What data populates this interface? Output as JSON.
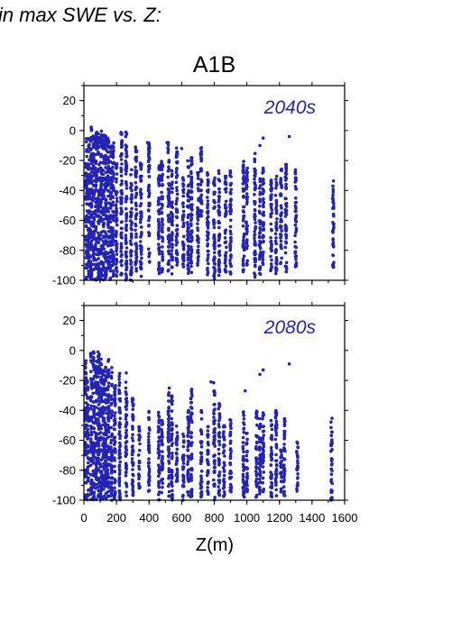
{
  "heading": "in max SWE vs. Z:",
  "title": "A1B",
  "xlabel": "Z(m)",
  "colors": {
    "points": "#2323b4",
    "frame": "#000000"
  },
  "chart_data": [
    {
      "type": "scatter",
      "panel_label": "2040s",
      "xlabel": "Z(m)",
      "ylabel": "",
      "xlim": [
        0,
        1600
      ],
      "ylim": [
        -100,
        30
      ],
      "x_ticks": [
        0,
        200,
        400,
        600,
        800,
        1000,
        1200,
        1400,
        1600
      ],
      "y_ticks": [
        20,
        0,
        -20,
        -40,
        -60,
        -80,
        -100
      ],
      "x_tick_labels_shown": false,
      "grid": false,
      "description_of_point_columns": "",
      "columns": [
        {
          "x": 15,
          "y": [
            -100,
            -5
          ]
        },
        {
          "x": 30,
          "y": [
            -100,
            -3
          ]
        },
        {
          "x": 45,
          "y": [
            -100,
            3
          ]
        },
        {
          "x": 60,
          "y": [
            -100,
            0
          ]
        },
        {
          "x": 75,
          "y": [
            -100,
            0
          ]
        },
        {
          "x": 90,
          "y": [
            -100,
            0
          ]
        },
        {
          "x": 105,
          "y": [
            -100,
            0
          ]
        },
        {
          "x": 120,
          "y": [
            -100,
            0
          ]
        },
        {
          "x": 135,
          "y": [
            -100,
            0
          ]
        },
        {
          "x": 150,
          "y": [
            -100,
            -5
          ]
        },
        {
          "x": 165,
          "y": [
            -100,
            -10
          ]
        },
        {
          "x": 180,
          "y": [
            -100,
            -5
          ]
        },
        {
          "x": 200,
          "y": [
            -98,
            -20
          ]
        },
        {
          "x": 230,
          "y": [
            -98,
            0
          ]
        },
        {
          "x": 260,
          "y": [
            -100,
            0
          ]
        },
        {
          "x": 290,
          "y": [
            -100,
            -25
          ]
        },
        {
          "x": 320,
          "y": [
            -95,
            -10
          ]
        },
        {
          "x": 350,
          "y": [
            -98,
            -20
          ]
        },
        {
          "x": 400,
          "y": [
            -90,
            -8
          ]
        },
        {
          "x": 460,
          "y": [
            -98,
            -22
          ]
        },
        {
          "x": 480,
          "y": [
            -95,
            -20
          ]
        },
        {
          "x": 520,
          "y": [
            -95,
            -8
          ]
        },
        {
          "x": 540,
          "y": [
            -98,
            -25
          ]
        },
        {
          "x": 570,
          "y": [
            -90,
            -10
          ]
        },
        {
          "x": 610,
          "y": [
            -95,
            -30
          ]
        },
        {
          "x": 640,
          "y": [
            -98,
            -20
          ]
        },
        {
          "x": 660,
          "y": [
            -95,
            -15
          ]
        },
        {
          "x": 700,
          "y": [
            -90,
            -28
          ]
        },
        {
          "x": 720,
          "y": [
            -60,
            -10
          ]
        },
        {
          "x": 760,
          "y": [
            -98,
            -28
          ]
        },
        {
          "x": 800,
          "y": [
            -100,
            -30
          ]
        },
        {
          "x": 830,
          "y": [
            -98,
            -25
          ]
        },
        {
          "x": 870,
          "y": [
            -95,
            -30
          ]
        },
        {
          "x": 900,
          "y": [
            -96,
            -25
          ]
        },
        {
          "x": 980,
          "y": [
            -95,
            -20
          ]
        },
        {
          "x": 1000,
          "y": [
            -90,
            -25
          ]
        },
        {
          "x": 1050,
          "y": [
            -98,
            -15
          ]
        },
        {
          "x": 1080,
          "y": [
            -98,
            -30
          ]
        },
        {
          "x": 1100,
          "y": [
            -90,
            -25
          ]
        },
        {
          "x": 1150,
          "y": [
            -95,
            -30
          ]
        },
        {
          "x": 1180,
          "y": [
            -96,
            -28
          ]
        },
        {
          "x": 1210,
          "y": [
            -90,
            -25
          ]
        },
        {
          "x": 1240,
          "y": [
            -95,
            -20
          ]
        },
        {
          "x": 1300,
          "y": [
            -92,
            -25
          ]
        },
        {
          "x": 1530,
          "y": [
            -92,
            -33
          ]
        }
      ],
      "outliers": [
        {
          "x": 390,
          "y": -8
        },
        {
          "x": 510,
          "y": -8
        },
        {
          "x": 1080,
          "y": -10
        },
        {
          "x": 1100,
          "y": -5
        },
        {
          "x": 1260,
          "y": -4
        },
        {
          "x": 600,
          "y": -12
        }
      ]
    },
    {
      "type": "scatter",
      "panel_label": "2080s",
      "xlabel": "Z(m)",
      "ylabel": "",
      "xlim": [
        0,
        1600
      ],
      "ylim": [
        -100,
        30
      ],
      "x_ticks": [
        0,
        200,
        400,
        600,
        800,
        1000,
        1200,
        1400,
        1600
      ],
      "x_tick_labels": [
        "0",
        "200",
        "400",
        "600",
        "800",
        "1000",
        "1200",
        "1400",
        "1600"
      ],
      "y_ticks": [
        20,
        0,
        -20,
        -40,
        -60,
        -80,
        -100
      ],
      "grid": false,
      "columns": [
        {
          "x": 10,
          "y": [
            -100,
            -5
          ]
        },
        {
          "x": 25,
          "y": [
            -100,
            -20
          ]
        },
        {
          "x": 45,
          "y": [
            -100,
            0
          ]
        },
        {
          "x": 60,
          "y": [
            -100,
            0
          ]
        },
        {
          "x": 75,
          "y": [
            -100,
            -5
          ]
        },
        {
          "x": 90,
          "y": [
            -100,
            0
          ]
        },
        {
          "x": 105,
          "y": [
            -100,
            -5
          ]
        },
        {
          "x": 120,
          "y": [
            -100,
            -8
          ]
        },
        {
          "x": 135,
          "y": [
            -100,
            -10
          ]
        },
        {
          "x": 150,
          "y": [
            -100,
            -5
          ]
        },
        {
          "x": 170,
          "y": [
            -100,
            -10
          ]
        },
        {
          "x": 190,
          "y": [
            -100,
            -20
          ]
        },
        {
          "x": 220,
          "y": [
            -100,
            -15
          ]
        },
        {
          "x": 260,
          "y": [
            -100,
            -20
          ]
        },
        {
          "x": 300,
          "y": [
            -98,
            -30
          ]
        },
        {
          "x": 340,
          "y": [
            -95,
            -50
          ]
        },
        {
          "x": 400,
          "y": [
            -95,
            -40
          ]
        },
        {
          "x": 460,
          "y": [
            -100,
            -40
          ]
        },
        {
          "x": 480,
          "y": [
            -98,
            -45
          ]
        },
        {
          "x": 520,
          "y": [
            -98,
            -25
          ]
        },
        {
          "x": 540,
          "y": [
            -100,
            -30
          ]
        },
        {
          "x": 570,
          "y": [
            -95,
            -50
          ]
        },
        {
          "x": 610,
          "y": [
            -100,
            -55
          ]
        },
        {
          "x": 640,
          "y": [
            -100,
            -40
          ]
        },
        {
          "x": 660,
          "y": [
            -100,
            -25
          ]
        },
        {
          "x": 720,
          "y": [
            -98,
            -40
          ]
        },
        {
          "x": 760,
          "y": [
            -98,
            -50
          ]
        },
        {
          "x": 800,
          "y": [
            -100,
            -20
          ]
        },
        {
          "x": 830,
          "y": [
            -98,
            -35
          ]
        },
        {
          "x": 860,
          "y": [
            -98,
            -50
          ]
        },
        {
          "x": 900,
          "y": [
            -98,
            -45
          ]
        },
        {
          "x": 980,
          "y": [
            -98,
            -40
          ]
        },
        {
          "x": 1000,
          "y": [
            -95,
            -55
          ]
        },
        {
          "x": 1060,
          "y": [
            -98,
            -40
          ]
        },
        {
          "x": 1080,
          "y": [
            -100,
            -45
          ]
        },
        {
          "x": 1100,
          "y": [
            -95,
            -40
          ]
        },
        {
          "x": 1150,
          "y": [
            -98,
            -45
          ]
        },
        {
          "x": 1180,
          "y": [
            -98,
            -40
          ]
        },
        {
          "x": 1210,
          "y": [
            -95,
            -60
          ]
        },
        {
          "x": 1230,
          "y": [
            -98,
            -45
          ]
        },
        {
          "x": 1310,
          "y": [
            -95,
            -60
          ]
        },
        {
          "x": 1520,
          "y": [
            -100,
            -45
          ]
        }
      ],
      "outliers": [
        {
          "x": 260,
          "y": -15
        },
        {
          "x": 990,
          "y": -27
        },
        {
          "x": 1080,
          "y": -16
        },
        {
          "x": 1100,
          "y": -13
        },
        {
          "x": 1260,
          "y": -9
        },
        {
          "x": 780,
          "y": -21
        }
      ]
    }
  ]
}
